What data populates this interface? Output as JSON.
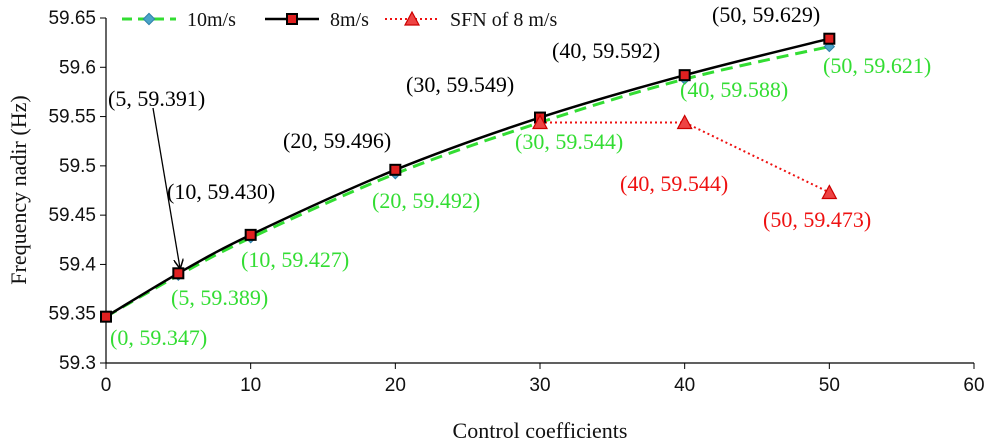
{
  "chart_data": {
    "type": "line",
    "title": "",
    "xlabel": "Control coefficients",
    "ylabel": "Frequency nadir (Hz)",
    "xlim": [
      0,
      60
    ],
    "ylim": [
      59.3,
      59.65
    ],
    "xticks": [
      "0",
      "10",
      "20",
      "30",
      "40",
      "50",
      "60"
    ],
    "yticks": [
      "59.3",
      "59.35",
      "59.4",
      "59.45",
      "59.5",
      "59.55",
      "59.6",
      "59.65"
    ],
    "grid": false,
    "legend_position": "top",
    "series": [
      {
        "name": "10m/s",
        "color": "#33dd33",
        "line": "dashed",
        "marker": "diamond",
        "x": [
          0,
          5,
          10,
          20,
          30,
          40,
          50
        ],
        "values": [
          59.347,
          59.389,
          59.427,
          59.492,
          59.544,
          59.588,
          59.621
        ]
      },
      {
        "name": "8m/s",
        "color": "#000000",
        "line": "solid",
        "marker": "square",
        "x": [
          0,
          5,
          10,
          20,
          30,
          40,
          50
        ],
        "values": [
          59.347,
          59.391,
          59.43,
          59.496,
          59.549,
          59.592,
          59.629
        ]
      },
      {
        "name": "SFN of 8 m/s",
        "color": "#ee1111",
        "line": "dotted",
        "marker": "triangle",
        "x": [
          30,
          40,
          50
        ],
        "values": [
          59.544,
          59.544,
          59.473
        ]
      }
    ],
    "annotations": [
      {
        "text": "(0, 59.347)",
        "color": "#33dd33"
      },
      {
        "text": "(5, 59.389)",
        "color": "#33dd33"
      },
      {
        "text": "(10, 59.427)",
        "color": "#33dd33"
      },
      {
        "text": "(20, 59.492)",
        "color": "#33dd33"
      },
      {
        "text": "(30, 59.544)",
        "color": "#33dd33"
      },
      {
        "text": "(40, 59.588)",
        "color": "#33dd33"
      },
      {
        "text": "(50, 59.621)",
        "color": "#33dd33"
      },
      {
        "text": "(5, 59.391)",
        "color": "#000000"
      },
      {
        "text": "(10, 59.430)",
        "color": "#000000"
      },
      {
        "text": "(20, 59.496)",
        "color": "#000000"
      },
      {
        "text": "(30, 59.549)",
        "color": "#000000"
      },
      {
        "text": "(40, 59.592)",
        "color": "#000000"
      },
      {
        "text": "(50, 59.629)",
        "color": "#000000"
      },
      {
        "text": "(40, 59.544)",
        "color": "#ee1111"
      },
      {
        "text": "(50, 59.473)",
        "color": "#ee1111"
      }
    ]
  }
}
